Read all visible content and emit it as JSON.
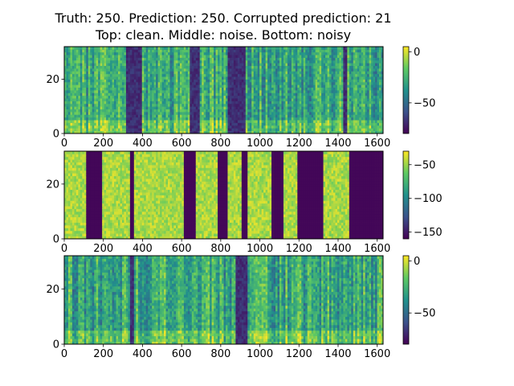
{
  "title": {
    "line1": "Truth: 250. Prediction: 250. Corrupted prediction: 21",
    "line2": "Top: clean. Middle: noise. Bottom: noisy"
  },
  "chart_data": [
    {
      "type": "heatmap",
      "name": "clean",
      "xlim": [
        0,
        1630
      ],
      "ylim": [
        0,
        32
      ],
      "xticks": [
        "0",
        "200",
        "400",
        "600",
        "800",
        "1000",
        "1200",
        "1400",
        "1600"
      ],
      "yticks": [
        "0",
        "20"
      ],
      "colorbar": {
        "ticks": [
          "0",
          "−50"
        ],
        "range": [
          -80,
          5
        ]
      },
      "silent_spans": [
        [
          320,
          400
        ],
        [
          640,
          690
        ],
        [
          840,
          925
        ],
        [
          1430,
          1450
        ]
      ],
      "active_spans": [
        [
          0,
          320
        ],
        [
          400,
          640
        ],
        [
          690,
          840
        ],
        [
          925,
          1430
        ],
        [
          1450,
          1630
        ]
      ]
    },
    {
      "type": "heatmap",
      "name": "noise",
      "xlim": [
        0,
        1630
      ],
      "ylim": [
        0,
        32
      ],
      "xticks": [
        "0",
        "200",
        "400",
        "600",
        "800",
        "1000",
        "1200",
        "1400",
        "1600"
      ],
      "yticks": [
        "0",
        "20"
      ],
      "colorbar": {
        "ticks": [
          "−50",
          "−100",
          "−150"
        ],
        "range": [
          -160,
          -30
        ]
      },
      "active_spans": [
        [
          0,
          115
        ],
        [
          190,
          340
        ],
        [
          360,
          610
        ],
        [
          670,
          780
        ],
        [
          840,
          910
        ],
        [
          940,
          1060
        ],
        [
          1120,
          1190
        ],
        [
          1320,
          1460
        ]
      ],
      "silent_spans": [
        [
          115,
          190
        ],
        [
          340,
          360
        ],
        [
          610,
          670
        ],
        [
          780,
          840
        ],
        [
          910,
          940
        ],
        [
          1060,
          1120
        ],
        [
          1190,
          1320
        ],
        [
          1460,
          1630
        ]
      ]
    },
    {
      "type": "heatmap",
      "name": "noisy",
      "xlim": [
        0,
        1630
      ],
      "ylim": [
        0,
        32
      ],
      "xticks": [
        "0",
        "200",
        "400",
        "600",
        "800",
        "1000",
        "1200",
        "1400",
        "1600"
      ],
      "yticks": [
        "0",
        "20"
      ],
      "colorbar": {
        "ticks": [
          "0",
          "−50"
        ],
        "range": [
          -80,
          5
        ]
      },
      "silent_spans": [
        [
          340,
          360
        ],
        [
          880,
          935
        ]
      ],
      "active_spans": [
        [
          0,
          340
        ],
        [
          360,
          880
        ],
        [
          935,
          1630
        ]
      ]
    }
  ]
}
